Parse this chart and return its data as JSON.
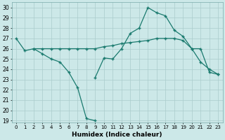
{
  "xlabel": "Humidex (Indice chaleur)",
  "bg_color": "#cce8e8",
  "grid_color": "#aacccc",
  "line_color": "#1a7a6e",
  "ylim_min": 18.8,
  "ylim_max": 30.5,
  "yticks": [
    19,
    20,
    21,
    22,
    23,
    24,
    25,
    26,
    27,
    28,
    29,
    30
  ],
  "curve_dip_x": [
    0,
    1,
    2,
    3,
    4,
    5,
    6,
    7,
    8,
    9
  ],
  "curve_dip_y": [
    27.0,
    25.8,
    26.0,
    25.5,
    25.0,
    24.7,
    23.7,
    22.2,
    19.2,
    19.0
  ],
  "curve_flat_x": [
    2,
    3,
    4,
    5,
    6,
    7,
    8,
    9,
    10,
    11,
    12,
    13,
    14,
    15,
    16,
    17,
    18,
    19,
    20,
    21,
    22,
    23
  ],
  "curve_flat_y": [
    26.0,
    26.0,
    26.0,
    26.0,
    26.0,
    26.0,
    26.0,
    26.0,
    26.2,
    26.3,
    26.5,
    26.6,
    26.7,
    26.8,
    27.0,
    27.0,
    27.0,
    26.8,
    26.0,
    26.0,
    23.7,
    23.5
  ],
  "curve_peak_x": [
    9,
    10,
    11,
    12,
    13,
    14,
    15,
    16,
    17,
    18,
    19,
    20,
    21,
    22,
    23
  ],
  "curve_peak_y": [
    23.2,
    25.1,
    25.0,
    26.0,
    27.5,
    28.0,
    30.0,
    29.5,
    29.2,
    27.8,
    27.2,
    26.0,
    24.7,
    24.0,
    23.5
  ]
}
